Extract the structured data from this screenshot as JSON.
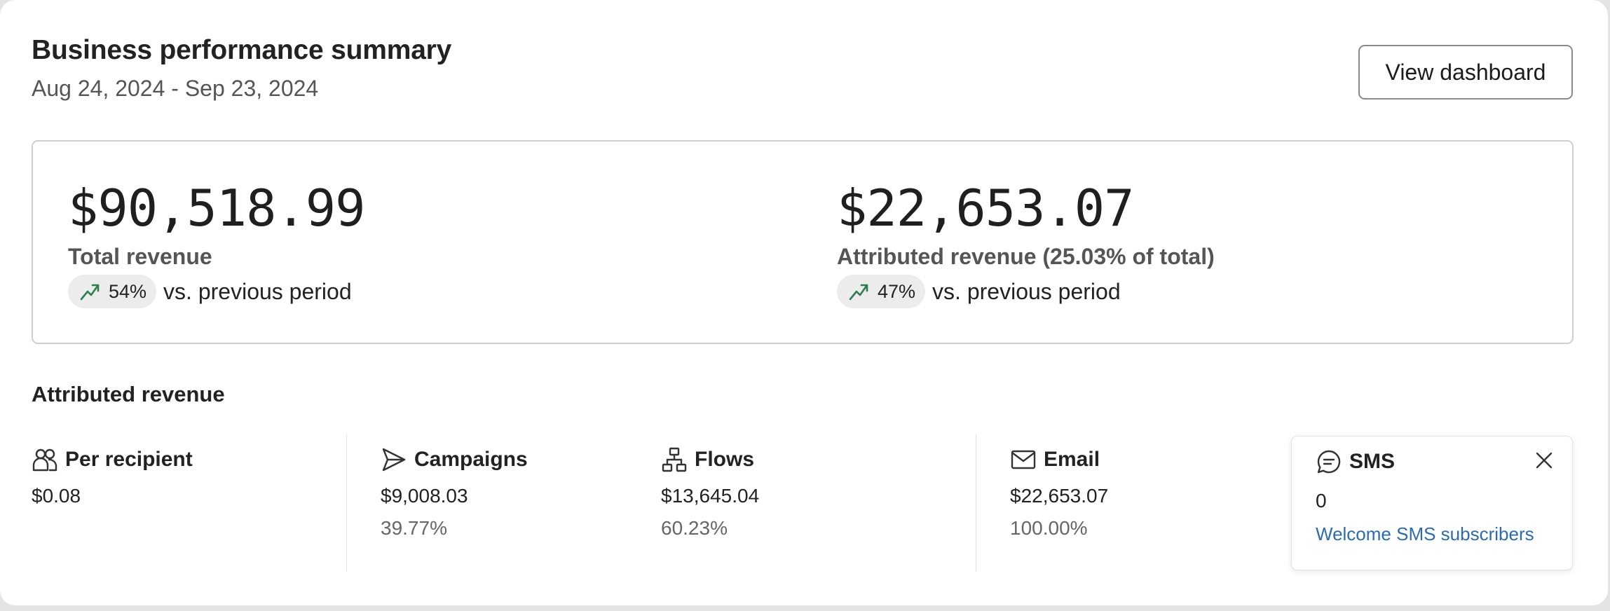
{
  "header": {
    "title": "Business performance summary",
    "date_range": "Aug 24, 2024 - Sep 23, 2024",
    "view_dashboard_label": "View dashboard"
  },
  "summary": {
    "total_revenue": {
      "value": "$90,518.99",
      "label": "Total revenue",
      "change": "54%",
      "change_direction": "up",
      "comparison_text": "vs. previous period"
    },
    "attributed_revenue": {
      "value": "$22,653.07",
      "label": "Attributed revenue (25.03% of total)",
      "change": "47%",
      "change_direction": "up",
      "comparison_text": "vs. previous period"
    }
  },
  "attributed": {
    "section_title": "Attributed revenue",
    "per_recipient": {
      "label": "Per recipient",
      "icon": "people-icon",
      "value": "$0.08"
    },
    "campaigns": {
      "label": "Campaigns",
      "icon": "send-icon",
      "value": "$9,008.03",
      "percent": "39.77%"
    },
    "flows": {
      "label": "Flows",
      "icon": "flow-icon",
      "value": "$13,645.04",
      "percent": "60.23%"
    },
    "email": {
      "label": "Email",
      "icon": "mail-icon",
      "value": "$22,653.07",
      "percent": "100.00%"
    },
    "sms": {
      "label": "SMS",
      "icon": "chat-icon",
      "value": "0",
      "link_text": "Welcome SMS subscribers"
    }
  },
  "colors": {
    "trend_up": "#2e7d4f",
    "link": "#2a6cb4"
  }
}
